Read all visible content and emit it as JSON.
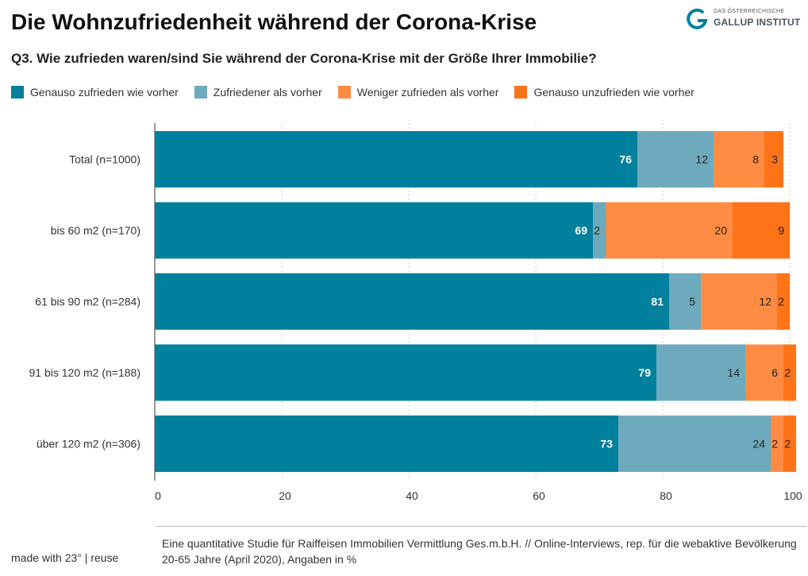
{
  "header": {
    "title": "Die Wohnzufriedenheit während der Corona-Krise",
    "subtitle": "Q3. Wie zufrieden waren/sind Sie während der Corona-Krise mit der Größe Ihrer Immobilie?"
  },
  "logo": {
    "small_text": "DAS ÖSTERREICHISCHE",
    "big_text": "GALLUP INSTITUT",
    "icon": "gallup-g-logo"
  },
  "legend": [
    {
      "label": "Genauso zufrieden wie vorher",
      "color": "#00809c"
    },
    {
      "label": "Zufriedener als vorher",
      "color": "#6eaabd"
    },
    {
      "label": "Weniger zufrieden als vorher",
      "color": "#ff8c42"
    },
    {
      "label": "Genauso unzufrieden wie vorher",
      "color": "#ff7318"
    }
  ],
  "footer": {
    "made_with": "made with 23° | reuse",
    "note": "Eine quantitative Studie für Raiffeisen Immobilien Vermittlung Ges.m.b.H. // Online-Interviews, rep. für die webaktive Bevölkerung 20-65 Jahre (April 2020), Angaben in %"
  },
  "chart_data": {
    "type": "bar",
    "orientation": "horizontal",
    "stacked": true,
    "categories": [
      "Total (n=1000)",
      "bis 60 m2 (n=170)",
      "61 bis 90 m2 (n=284)",
      "91 bis 120 m2 (n=188)",
      "über 120 m2 (n=306)"
    ],
    "series": [
      {
        "name": "Genauso zufrieden wie vorher",
        "color": "#00809c",
        "values": [
          76,
          69,
          81,
          79,
          73
        ]
      },
      {
        "name": "Zufriedener als vorher",
        "color": "#6eaabd",
        "values": [
          12,
          2,
          5,
          14,
          24
        ]
      },
      {
        "name": "Weniger zufrieden als vorher",
        "color": "#ff8c42",
        "values": [
          8,
          20,
          12,
          6,
          2
        ]
      },
      {
        "name": "Genauso unzufrieden wie vorher",
        "color": "#ff7318",
        "values": [
          3,
          9,
          2,
          2,
          2
        ]
      }
    ],
    "xlim": [
      0,
      100
    ],
    "xticks": [
      0,
      20,
      40,
      60,
      80,
      100
    ],
    "title": "",
    "xlabel": "",
    "ylabel": "",
    "grid": true,
    "legend_position": "top"
  }
}
